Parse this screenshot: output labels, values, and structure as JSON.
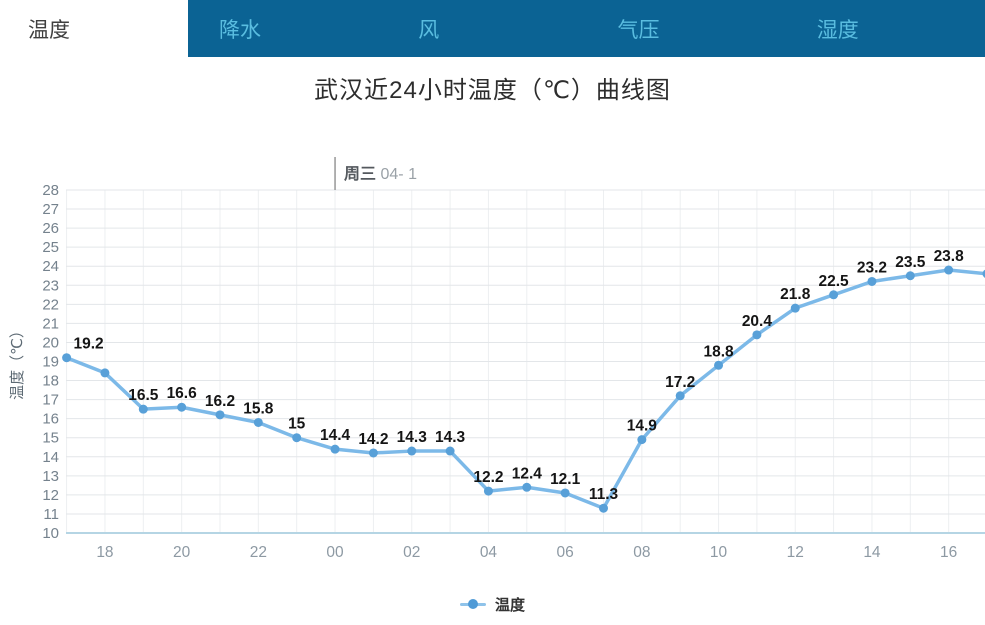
{
  "tabs": {
    "active": "温度",
    "items": [
      "降水",
      "风",
      "气压",
      "湿度"
    ]
  },
  "title": "武汉近24小时温度（℃）曲线图",
  "chart_data": {
    "type": "line",
    "title": "武汉近24小时温度（℃）曲线图",
    "series_name": "温度",
    "ylabel": "温度（℃）",
    "ylim": [
      10,
      28
    ],
    "y_tick_step": 1,
    "grid": true,
    "legend_position": "bottom",
    "x_hours": [
      "17",
      "18",
      "19",
      "20",
      "21",
      "22",
      "23",
      "00",
      "01",
      "02",
      "03",
      "04",
      "05",
      "06",
      "07",
      "08",
      "09",
      "10",
      "11",
      "12",
      "13",
      "14",
      "15",
      "16",
      "17"
    ],
    "values": [
      19.2,
      18.4,
      16.5,
      16.6,
      16.2,
      15.8,
      15,
      14.4,
      14.2,
      14.3,
      14.3,
      12.2,
      12.4,
      12.1,
      11.3,
      14.9,
      17.2,
      18.8,
      20.4,
      21.8,
      22.5,
      23.2,
      23.5,
      23.8,
      23.6
    ],
    "point_labels": [
      "19.2",
      null,
      "16.5",
      "16.6",
      "16.2",
      "15.8",
      "15",
      "14.4",
      "14.2",
      "14.3",
      "14.3",
      "12.2",
      "12.4",
      "12.1",
      "11.3",
      "14.9",
      "17.2",
      "18.8",
      "20.4",
      "21.8",
      "22.5",
      "23.2",
      "23.5",
      "23.8",
      null
    ],
    "x_tick_labels": [
      "18",
      "20",
      "22",
      "00",
      "02",
      "04",
      "06",
      "08",
      "10",
      "12",
      "14",
      "16"
    ],
    "day_marker": {
      "bold": "周三",
      "rest": " 04- 1",
      "at_point_index": 7
    },
    "legend": {
      "label": "温度"
    },
    "colors": {
      "line": "#7cb9e8",
      "dot": "#58a0d8",
      "axis_line": "#b5d5e4",
      "grid_h": "#e3e6e9",
      "grid_v": "#edeff1",
      "y_tick": "#75828d",
      "x_tick": "#8d99a3",
      "axis_name": "#5d6a74",
      "point_label": "#151515",
      "marker_line": "#979797",
      "marker_bold": "#54595e",
      "marker_rest": "#9aa1a7",
      "tabbar_bg": "#0b6394",
      "tab_text": "#5abde0"
    }
  }
}
